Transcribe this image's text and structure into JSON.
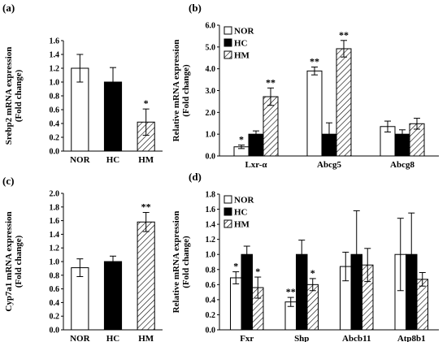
{
  "colors": {
    "NOR": "#ffffff",
    "HC": "#000000",
    "HM": "hatched",
    "axis": "#000000"
  },
  "chart_data": [
    {
      "id": "a",
      "type": "bar",
      "panel_label": "(a)",
      "ylabel": [
        "Srebp2 mRNA expression",
        "(Fold change)"
      ],
      "ylim": [
        0,
        1.6
      ],
      "yticks": [
        "0.0",
        "0.2",
        "0.4",
        "0.6",
        "0.8",
        "1.0",
        "1.2",
        "1.4",
        "1.6"
      ],
      "categories": [
        "NOR",
        "HC",
        "HM"
      ],
      "series": [
        {
          "key": "NOR",
          "values": [
            1.2,
            1.0,
            0.42
          ],
          "errors": [
            0.2,
            0.21,
            0.19
          ],
          "labels": [
            "",
            "",
            "*"
          ]
        }
      ],
      "per_category_style": [
        "NOR",
        "HC",
        "HM"
      ],
      "legend": null
    },
    {
      "id": "b",
      "type": "bar",
      "panel_label": "(b)",
      "ylabel": [
        "Relative mRNA expression",
        "(Fold change)"
      ],
      "ylim": [
        0,
        6.0
      ],
      "yticks": [
        "0.0",
        "1.0",
        "2.0",
        "3.0",
        "4.0",
        "5.0",
        "6.0"
      ],
      "categories": [
        "Lxr-α",
        "Abcg5",
        "Abcg8"
      ],
      "series": [
        {
          "name": "NOR",
          "key": "NOR",
          "values": [
            0.42,
            3.9,
            1.35
          ],
          "errors": [
            0.08,
            0.18,
            0.25
          ],
          "labels": [
            "*",
            "**",
            ""
          ]
        },
        {
          "name": "HC",
          "key": "HC",
          "values": [
            1.0,
            1.0,
            1.0
          ],
          "errors": [
            0.15,
            0.52,
            0.2
          ],
          "labels": [
            "",
            "",
            ""
          ]
        },
        {
          "name": "HM",
          "key": "HM",
          "values": [
            2.72,
            4.92,
            1.48
          ],
          "errors": [
            0.4,
            0.38,
            0.25
          ],
          "labels": [
            "**",
            "**",
            ""
          ]
        }
      ],
      "legend": "top-left"
    },
    {
      "id": "c",
      "type": "bar",
      "panel_label": "(c)",
      "ylabel": [
        "Cyp7a1 mRNA expression",
        "(Fold change)"
      ],
      "ylim": [
        0,
        2.0
      ],
      "yticks": [
        "0.0",
        "0.2",
        "0.4",
        "0.6",
        "0.8",
        "1.0",
        "1.2",
        "1.4",
        "1.6",
        "1.8",
        "2.0"
      ],
      "categories": [
        "NOR",
        "HC",
        "HM"
      ],
      "series": [
        {
          "key": "NOR",
          "values": [
            0.91,
            1.0,
            1.58
          ],
          "errors": [
            0.13,
            0.08,
            0.14
          ],
          "labels": [
            "",
            "",
            "**"
          ]
        }
      ],
      "per_category_style": [
        "NOR",
        "HC",
        "HM"
      ],
      "legend": null
    },
    {
      "id": "d",
      "type": "bar",
      "panel_label": "(d)",
      "ylabel": [
        "Relative mRNA expression",
        "(Fold change)"
      ],
      "ylim": [
        0,
        1.8
      ],
      "yticks": [
        "0.0",
        "0.2",
        "0.4",
        "0.6",
        "0.8",
        "1.0",
        "1.2",
        "1.4",
        "1.6",
        "1.8"
      ],
      "categories": [
        "Fxr",
        "Shp",
        "Abcb11",
        "Atp8b1"
      ],
      "series": [
        {
          "name": "NOR",
          "key": "NOR",
          "values": [
            0.69,
            0.37,
            0.84,
            1.0
          ],
          "errors": [
            0.08,
            0.06,
            0.19,
            0.48
          ],
          "labels": [
            "*",
            "**",
            "",
            ""
          ]
        },
        {
          "name": "HC",
          "key": "HC",
          "values": [
            1.0,
            1.0,
            1.0,
            1.0
          ],
          "errors": [
            0.11,
            0.19,
            0.58,
            0.55
          ],
          "labels": [
            "",
            "",
            "",
            ""
          ]
        },
        {
          "name": "HM",
          "key": "HM",
          "values": [
            0.56,
            0.6,
            0.86,
            0.67
          ],
          "errors": [
            0.14,
            0.08,
            0.22,
            0.09
          ],
          "labels": [
            "*",
            "*",
            "",
            ""
          ]
        }
      ],
      "legend": "top-left"
    }
  ]
}
